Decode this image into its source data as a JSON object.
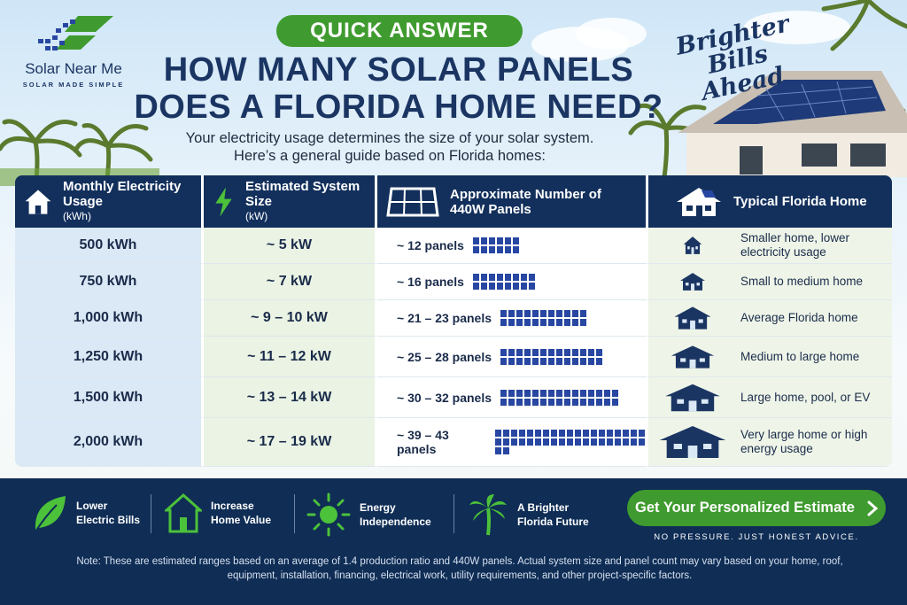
{
  "brand": {
    "name": "Solar Near Me",
    "tagline": "SOLAR MADE SIMPLE"
  },
  "quick_answer": "QUICK ANSWER",
  "headline": {
    "line1": "HOW MANY SOLAR PANELS",
    "line2": "DOES A FLORIDA HOME NEED?"
  },
  "subline": {
    "line1": "Your electricity usage determines the size of your solar system.",
    "line2": "Here’s a general guide based on Florida homes:"
  },
  "script_slogan": {
    "line1": "Brighter",
    "line2": "Bills Ahead"
  },
  "table": {
    "headers": [
      {
        "icon": "house-icon",
        "title": "Monthly Electricity Usage",
        "sub": "(kWh)"
      },
      {
        "icon": "lightning-icon",
        "title": "Estimated System Size",
        "sub": "(kW)"
      },
      {
        "icon": "solar-panel-icon",
        "title": "Approximate Number of 440W Panels",
        "sub": ""
      },
      {
        "icon": "solar-house-icon",
        "title": "Typical Florida Home",
        "sub": ""
      }
    ],
    "rows": [
      {
        "usage": "500 kWh",
        "size": "~ 5 kW",
        "panels": "~ 12 panels",
        "panel_count": 12,
        "home": "Smaller home, lower electricity usage"
      },
      {
        "usage": "750 kWh",
        "size": "~ 7 kW",
        "panels": "~ 16 panels",
        "panel_count": 16,
        "home": "Small to medium home"
      },
      {
        "usage": "1,000 kWh",
        "size": "~ 9 – 10 kW",
        "panels": "~ 21 – 23 panels",
        "panel_count": 22,
        "home": "Average Florida home"
      },
      {
        "usage": "1,250 kWh",
        "size": "~ 11 – 12 kW",
        "panels": "~ 25 – 28 panels",
        "panel_count": 26,
        "home": "Medium to large home"
      },
      {
        "usage": "1,500 kWh",
        "size": "~ 13 – 14 kW",
        "panels": "~ 30 – 32 panels",
        "panel_count": 30,
        "home": "Large home, pool, or EV"
      },
      {
        "usage": "2,000 kWh",
        "size": "~ 17 – 19 kW",
        "panels": "~ 39 – 43 panels",
        "panel_count": 40,
        "home": "Very large home or high energy usage"
      }
    ]
  },
  "benefits": [
    {
      "icon": "leaf-icon",
      "line1": "Lower",
      "line2": "Electric Bills"
    },
    {
      "icon": "home-value-icon",
      "line1": "Increase",
      "line2": "Home Value"
    },
    {
      "icon": "sun-icon",
      "line1": "Energy",
      "line2": "Independence"
    },
    {
      "icon": "palm-tree-icon",
      "line1": "A Brighter",
      "line2": "Florida Future"
    }
  ],
  "cta": {
    "label": "Get Your Personalized Estimate",
    "sub": "NO PRESSURE. JUST HONEST ADVICE."
  },
  "note": "Note: These are estimated ranges based on an average of 1.4 production ratio and 440W panels. Actual system size and panel count may vary based on your home, roof, equipment, installation, financing, electrical work, utility requirements, and other project-specific factors.",
  "colors": {
    "navy": "#13305c",
    "green": "#3f9b2f",
    "panel_blue": "#2847a3"
  }
}
